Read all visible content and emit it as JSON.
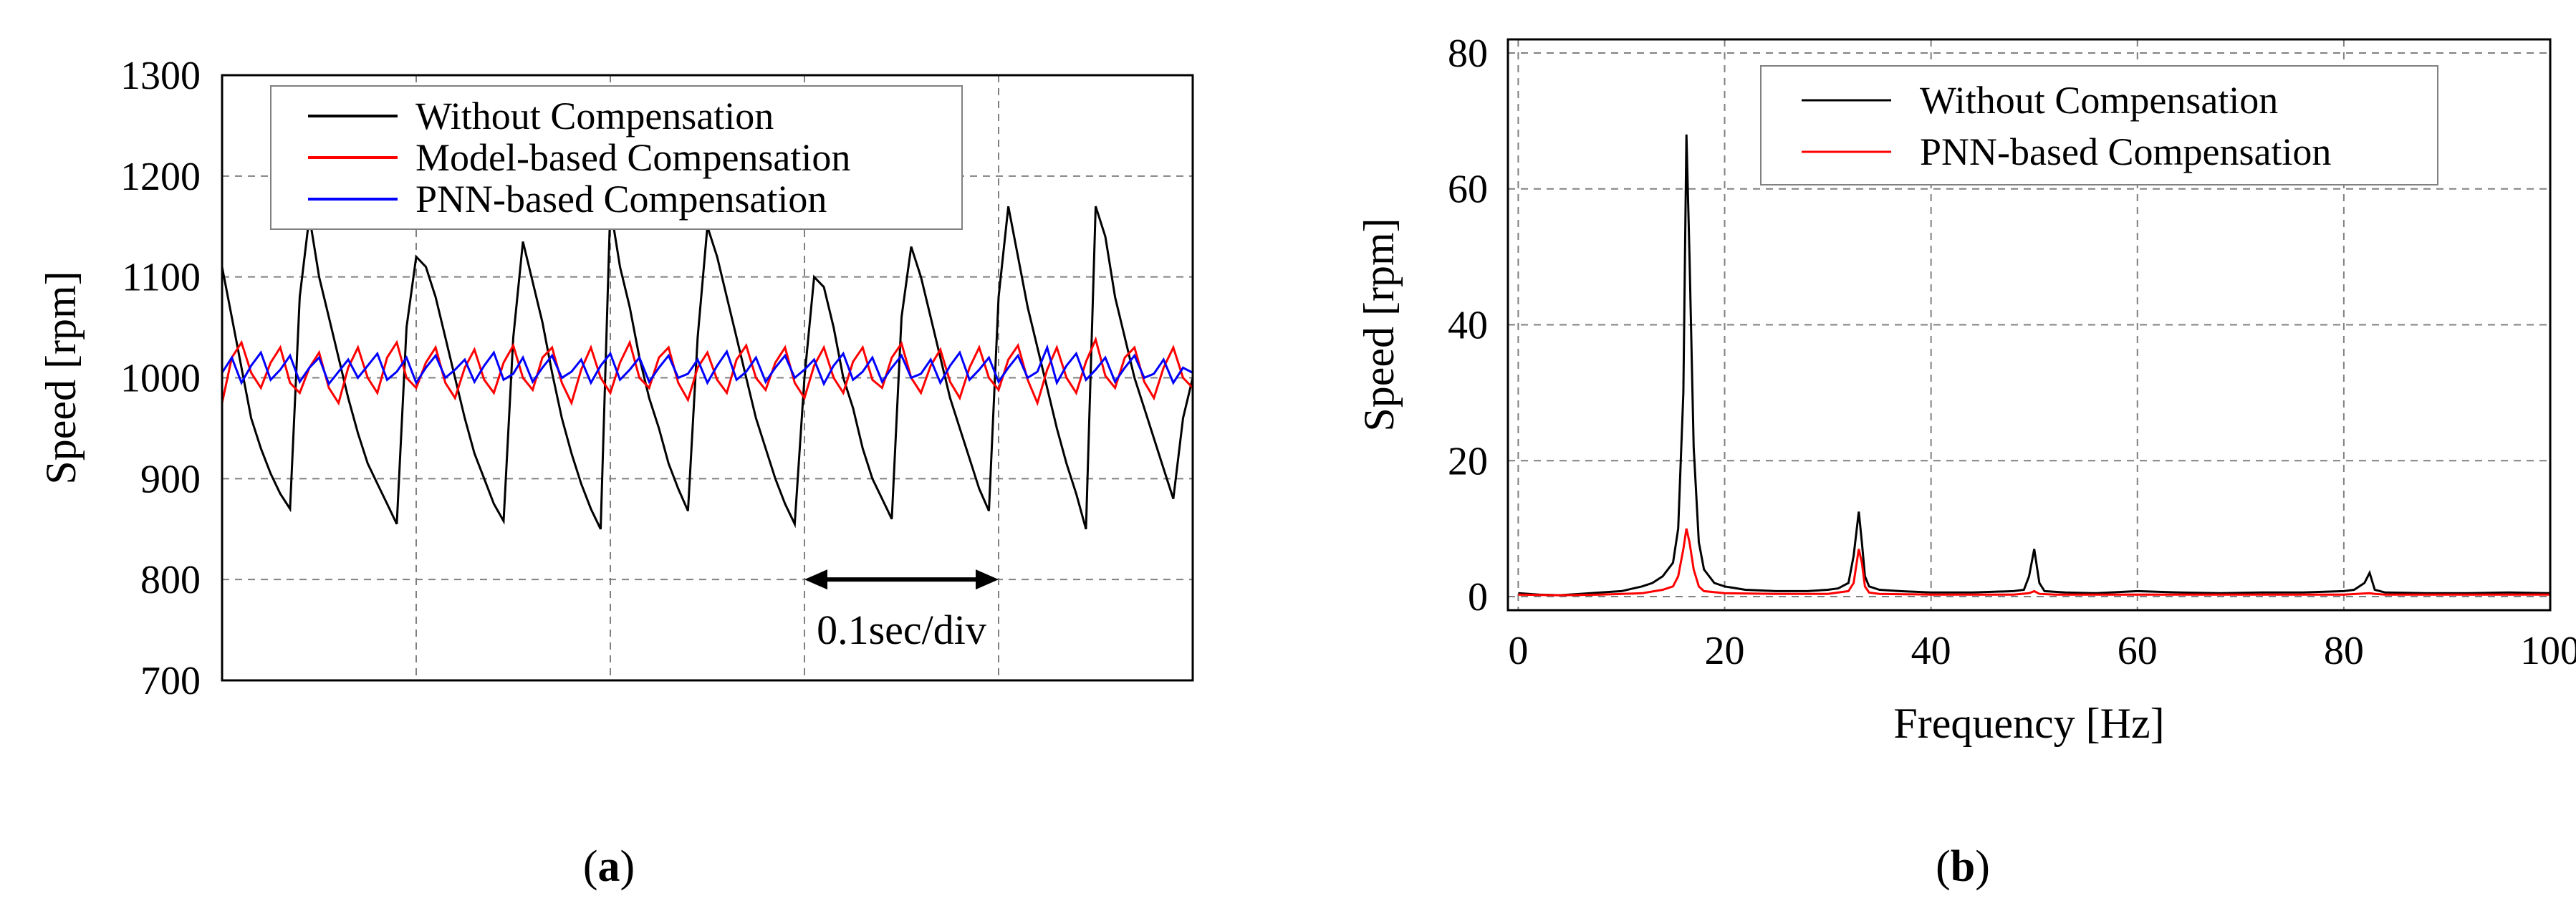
{
  "panels": {
    "a_label": "a",
    "b_label": "b"
  },
  "colors": {
    "without": "#000000",
    "model": "#ff0000",
    "pnn": "#0000ff",
    "grid": "#808080"
  },
  "chart_data": [
    {
      "type": "line",
      "ylabel": "Speed [rpm]",
      "xlabel": "",
      "ylim": [
        700,
        1300
      ],
      "yticks": [
        700,
        800,
        900,
        1000,
        1100,
        1200,
        1300
      ],
      "xlim": [
        0,
        0.5
      ],
      "xgrid_step": 0.1,
      "grid": true,
      "legend_position": "top-left",
      "annotation": "0.1sec/div",
      "annotation_span": [
        0.3,
        0.4
      ],
      "annotation_y": 800,
      "series": [
        {
          "name": "Without Compensation",
          "color": "#000000",
          "x": [
            0.0,
            0.005,
            0.01,
            0.015,
            0.02,
            0.025,
            0.03,
            0.035,
            0.04,
            0.045,
            0.05,
            0.055,
            0.06,
            0.065,
            0.07,
            0.075,
            0.08,
            0.085,
            0.09,
            0.095,
            0.1,
            0.105,
            0.11,
            0.115,
            0.12,
            0.125,
            0.13,
            0.135,
            0.14,
            0.145,
            0.15,
            0.155,
            0.16,
            0.165,
            0.17,
            0.175,
            0.18,
            0.185,
            0.19,
            0.195,
            0.2,
            0.205,
            0.21,
            0.215,
            0.22,
            0.225,
            0.23,
            0.235,
            0.24,
            0.245,
            0.25,
            0.255,
            0.26,
            0.265,
            0.27,
            0.275,
            0.28,
            0.285,
            0.29,
            0.295,
            0.3,
            0.305,
            0.31,
            0.315,
            0.32,
            0.325,
            0.33,
            0.335,
            0.34,
            0.345,
            0.35,
            0.355,
            0.36,
            0.365,
            0.37,
            0.375,
            0.38,
            0.385,
            0.39,
            0.395,
            0.4,
            0.405,
            0.41,
            0.415,
            0.42,
            0.425,
            0.43,
            0.435,
            0.44,
            0.445,
            0.45,
            0.455,
            0.46,
            0.465,
            0.47,
            0.475,
            0.48,
            0.485,
            0.49,
            0.495,
            0.5
          ],
          "values": [
            1110,
            1060,
            1010,
            960,
            930,
            905,
            885,
            870,
            1080,
            1160,
            1100,
            1060,
            1020,
            980,
            945,
            915,
            895,
            875,
            855,
            1050,
            1120,
            1110,
            1080,
            1040,
            1000,
            960,
            925,
            900,
            875,
            858,
            1040,
            1135,
            1095,
            1055,
            1005,
            960,
            925,
            895,
            870,
            850,
            1170,
            1110,
            1070,
            1020,
            980,
            950,
            915,
            890,
            868,
            1040,
            1150,
            1120,
            1080,
            1040,
            1000,
            960,
            930,
            900,
            875,
            855,
            1000,
            1100,
            1090,
            1050,
            1000,
            970,
            930,
            900,
            880,
            860,
            1060,
            1130,
            1100,
            1060,
            1020,
            980,
            950,
            920,
            890,
            868,
            1080,
            1170,
            1120,
            1070,
            1030,
            990,
            950,
            915,
            885,
            850,
            1170,
            1140,
            1080,
            1040,
            1000,
            970,
            940,
            910,
            880,
            960,
            1000
          ]
        },
        {
          "name": "Model-based Compensation",
          "color": "#ff0000",
          "x": [
            0.0,
            0.005,
            0.01,
            0.015,
            0.02,
            0.025,
            0.03,
            0.035,
            0.04,
            0.045,
            0.05,
            0.055,
            0.06,
            0.065,
            0.07,
            0.075,
            0.08,
            0.085,
            0.09,
            0.095,
            0.1,
            0.105,
            0.11,
            0.115,
            0.12,
            0.125,
            0.13,
            0.135,
            0.14,
            0.145,
            0.15,
            0.155,
            0.16,
            0.165,
            0.17,
            0.175,
            0.18,
            0.185,
            0.19,
            0.195,
            0.2,
            0.205,
            0.21,
            0.215,
            0.22,
            0.225,
            0.23,
            0.235,
            0.24,
            0.245,
            0.25,
            0.255,
            0.26,
            0.265,
            0.27,
            0.275,
            0.28,
            0.285,
            0.29,
            0.295,
            0.3,
            0.305,
            0.31,
            0.315,
            0.32,
            0.325,
            0.33,
            0.335,
            0.34,
            0.345,
            0.35,
            0.355,
            0.36,
            0.365,
            0.37,
            0.375,
            0.38,
            0.385,
            0.39,
            0.395,
            0.4,
            0.405,
            0.41,
            0.415,
            0.42,
            0.425,
            0.43,
            0.435,
            0.44,
            0.445,
            0.45,
            0.455,
            0.46,
            0.465,
            0.47,
            0.475,
            0.48,
            0.485,
            0.49,
            0.495,
            0.5
          ],
          "values": [
            975,
            1020,
            1035,
            1005,
            990,
            1015,
            1030,
            995,
            985,
            1010,
            1025,
            990,
            975,
            1010,
            1030,
            1000,
            985,
            1020,
            1035,
            1000,
            990,
            1015,
            1030,
            995,
            980,
            1010,
            1028,
            998,
            985,
            1015,
            1032,
            1000,
            988,
            1020,
            1030,
            995,
            975,
            1008,
            1030,
            1000,
            985,
            1015,
            1035,
            1000,
            990,
            1020,
            1030,
            995,
            978,
            1010,
            1025,
            998,
            985,
            1018,
            1032,
            1000,
            988,
            1015,
            1030,
            995,
            980,
            1012,
            1030,
            1000,
            985,
            1016,
            1030,
            998,
            990,
            1020,
            1034,
            1000,
            985,
            1012,
            1028,
            996,
            980,
            1010,
            1030,
            1000,
            988,
            1018,
            1032,
            998,
            975,
            1008,
            1030,
            1000,
            985,
            1016,
            1038,
            1002,
            990,
            1020,
            1030,
            996,
            980,
            1010,
            1030,
            1000,
            990
          ]
        },
        {
          "name": "PNN-based Compensation",
          "color": "#0000ff",
          "x": [
            0.0,
            0.005,
            0.01,
            0.015,
            0.02,
            0.025,
            0.03,
            0.035,
            0.04,
            0.045,
            0.05,
            0.055,
            0.06,
            0.065,
            0.07,
            0.075,
            0.08,
            0.085,
            0.09,
            0.095,
            0.1,
            0.105,
            0.11,
            0.115,
            0.12,
            0.125,
            0.13,
            0.135,
            0.14,
            0.145,
            0.15,
            0.155,
            0.16,
            0.165,
            0.17,
            0.175,
            0.18,
            0.185,
            0.19,
            0.195,
            0.2,
            0.205,
            0.21,
            0.215,
            0.22,
            0.225,
            0.23,
            0.235,
            0.24,
            0.245,
            0.25,
            0.255,
            0.26,
            0.265,
            0.27,
            0.275,
            0.28,
            0.285,
            0.29,
            0.295,
            0.3,
            0.305,
            0.31,
            0.315,
            0.32,
            0.325,
            0.33,
            0.335,
            0.34,
            0.345,
            0.35,
            0.355,
            0.36,
            0.365,
            0.37,
            0.375,
            0.38,
            0.385,
            0.39,
            0.395,
            0.4,
            0.405,
            0.41,
            0.415,
            0.42,
            0.425,
            0.43,
            0.435,
            0.44,
            0.445,
            0.45,
            0.455,
            0.46,
            0.465,
            0.47,
            0.475,
            0.48,
            0.485,
            0.49,
            0.495,
            0.5
          ],
          "values": [
            1005,
            1020,
            995,
            1012,
            1025,
            998,
            1008,
            1022,
            996,
            1010,
            1020,
            994,
            1006,
            1018,
            1000,
            1012,
            1024,
            998,
            1006,
            1020,
            995,
            1010,
            1022,
            1000,
            1008,
            1018,
            996,
            1012,
            1025,
            998,
            1004,
            1020,
            996,
            1010,
            1022,
            1000,
            1006,
            1018,
            995,
            1012,
            1024,
            998,
            1008,
            1020,
            996,
            1010,
            1022,
            1000,
            1004,
            1018,
            995,
            1012,
            1026,
            998,
            1006,
            1020,
            996,
            1010,
            1022,
            1000,
            1008,
            1018,
            994,
            1012,
            1024,
            998,
            1006,
            1020,
            996,
            1010,
            1022,
            1000,
            1004,
            1018,
            995,
            1012,
            1025,
            998,
            1008,
            1020,
            996,
            1010,
            1022,
            1000,
            1006,
            1030,
            995,
            1012,
            1024,
            998,
            1008,
            1020,
            996,
            1010,
            1022,
            1000,
            1004,
            1018,
            995,
            1010,
            1005
          ]
        }
      ]
    },
    {
      "type": "line",
      "ylabel": "Speed [rpm]",
      "xlabel": "Frequency [Hz]",
      "xlim": [
        -1,
        100
      ],
      "xticks": [
        0,
        20,
        40,
        60,
        80,
        100
      ],
      "ylim": [
        -2,
        82
      ],
      "yticks": [
        0,
        20,
        40,
        60,
        80
      ],
      "grid": true,
      "legend_position": "top-right",
      "series": [
        {
          "name": "Without Compensation",
          "color": "#000000",
          "x": [
            0,
            2,
            4,
            6,
            8,
            10,
            12,
            13,
            14,
            15,
            15.5,
            16,
            16.3,
            16.6,
            17,
            17.5,
            18,
            19,
            20,
            22,
            25,
            28,
            30,
            31,
            32,
            32.5,
            33,
            33.3,
            33.6,
            34,
            35,
            37,
            40,
            44,
            48,
            49,
            49.5,
            50,
            50.5,
            51,
            53,
            56,
            60,
            64,
            68,
            72,
            76,
            80,
            81,
            82,
            82.5,
            83,
            84,
            88,
            92,
            96,
            100
          ],
          "values": [
            0.5,
            0.3,
            0.2,
            0.4,
            0.6,
            0.8,
            1.5,
            2.0,
            3.0,
            5.0,
            10,
            30,
            68,
            50,
            22,
            8,
            4,
            2,
            1.5,
            1.0,
            0.8,
            0.8,
            1.0,
            1.2,
            2.0,
            6.0,
            12.5,
            8.0,
            3.0,
            1.5,
            1.0,
            0.8,
            0.6,
            0.6,
            0.8,
            1.0,
            3.0,
            7.0,
            2.0,
            0.8,
            0.6,
            0.5,
            0.8,
            0.6,
            0.5,
            0.6,
            0.6,
            0.8,
            1.0,
            2.0,
            3.5,
            1.0,
            0.6,
            0.5,
            0.5,
            0.6,
            0.5
          ]
        },
        {
          "name": "PNN-based Compensation",
          "color": "#ff0000",
          "x": [
            0,
            4,
            8,
            12,
            14,
            15,
            15.5,
            16,
            16.3,
            16.6,
            17,
            17.5,
            18,
            20,
            25,
            30,
            32,
            32.5,
            33,
            33.3,
            33.6,
            34,
            35,
            40,
            48,
            49.5,
            50,
            50.5,
            52,
            60,
            70,
            80,
            82.5,
            83,
            84,
            90,
            100
          ],
          "values": [
            0.3,
            0.2,
            0.3,
            0.5,
            1.0,
            1.5,
            3.0,
            7.0,
            10,
            8.0,
            4.0,
            1.5,
            0.8,
            0.5,
            0.4,
            0.4,
            0.8,
            2.0,
            7.0,
            5.0,
            1.5,
            0.6,
            0.4,
            0.3,
            0.3,
            0.5,
            0.8,
            0.4,
            0.3,
            0.3,
            0.3,
            0.3,
            0.5,
            0.4,
            0.3,
            0.3,
            0.3
          ]
        }
      ]
    }
  ]
}
